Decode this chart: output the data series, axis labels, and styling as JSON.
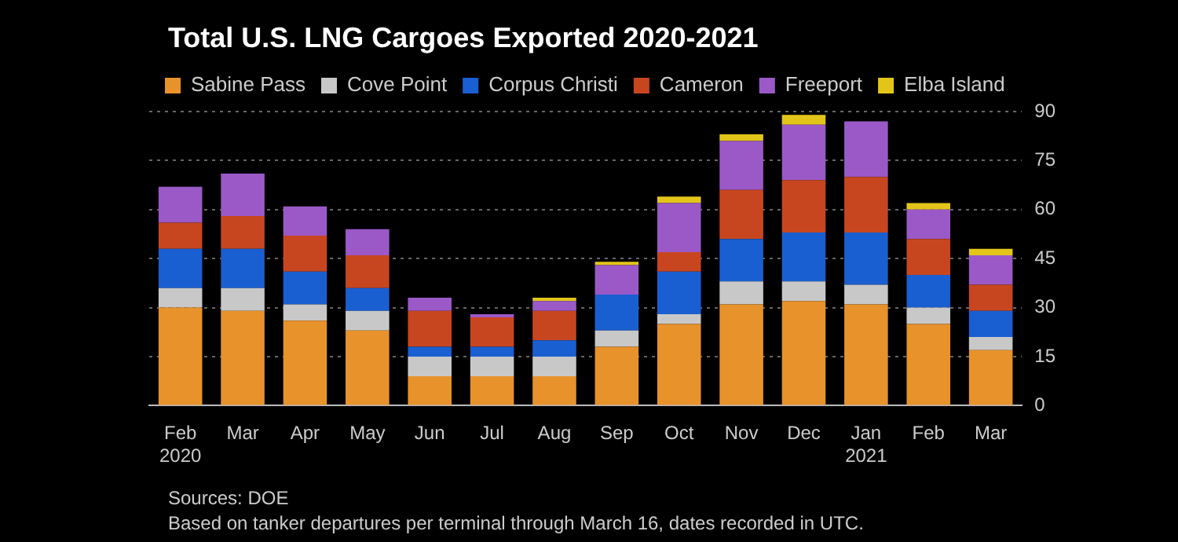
{
  "chart_data": {
    "type": "bar",
    "title": "Total U.S. LNG Cargoes Exported 2020-2021",
    "stacked": true,
    "legend": "top left",
    "grid": "y",
    "ylim": [
      0,
      90
    ],
    "yticks": [
      0,
      15,
      30,
      45,
      60,
      75,
      90
    ],
    "categories": [
      "Feb\n2020",
      "Mar",
      "Apr",
      "May",
      "Jun",
      "Jul",
      "Aug",
      "Sep",
      "Oct",
      "Nov",
      "Dec",
      "Jan\n2021",
      "Feb",
      "Mar"
    ],
    "series": [
      {
        "name": "Sabine Pass",
        "color": "#e8922b",
        "values": [
          30,
          29,
          26,
          23,
          9,
          9,
          9,
          18,
          25,
          31,
          32,
          31,
          25,
          17
        ]
      },
      {
        "name": "Cove Point",
        "color": "#c8c8c8",
        "values": [
          6,
          7,
          5,
          6,
          6,
          6,
          6,
          5,
          3,
          7,
          6,
          6,
          5,
          4
        ]
      },
      {
        "name": "Corpus Christi",
        "color": "#1a5fd1",
        "values": [
          12,
          12,
          10,
          7,
          3,
          3,
          5,
          11,
          13,
          13,
          15,
          16,
          10,
          8
        ]
      },
      {
        "name": "Cameron",
        "color": "#c8461f",
        "values": [
          8,
          10,
          11,
          10,
          11,
          9,
          9,
          0,
          6,
          15,
          16,
          17,
          11,
          8
        ]
      },
      {
        "name": "Freeport",
        "color": "#9b59c8",
        "values": [
          11,
          13,
          9,
          8,
          4,
          1,
          3,
          9,
          15,
          15,
          17,
          17,
          9,
          9
        ]
      },
      {
        "name": "Elba Island",
        "color": "#e3c51a",
        "values": [
          0,
          0,
          0,
          0,
          0,
          0,
          1,
          1,
          2,
          2,
          3,
          0,
          2,
          2
        ]
      }
    ],
    "annotations": [
      "Sources: DOE",
      "Based on tanker departures per terminal through March 16, dates recorded in UTC."
    ]
  }
}
